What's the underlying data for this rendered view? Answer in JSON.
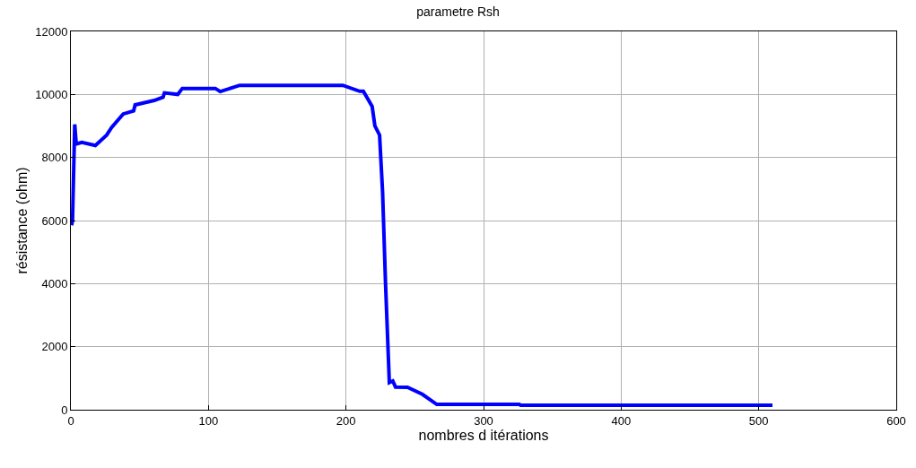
{
  "chart_data": {
    "type": "line",
    "title": "parametre Rsh",
    "xlabel": "nombres d itérations",
    "ylabel": "résistance (ohm)",
    "x": [
      0.5,
      1.2,
      2.8,
      3.9,
      8,
      17.8,
      26,
      29.6,
      38,
      45.6,
      46.7,
      60.6,
      67,
      68,
      77.7,
      81,
      105,
      108.6,
      122.7,
      152.7,
      197.7,
      210,
      212.6,
      219,
      221,
      224.4,
      226.6,
      228.7,
      231.5,
      234,
      236,
      244.7,
      255.5,
      266,
      326,
      327,
      510
    ],
    "series": [
      {
        "color": "#0000ff",
        "values": [
          5850,
          6000,
          9050,
          8430,
          8480,
          8380,
          8710,
          8950,
          9380,
          9480,
          9670,
          9810,
          9910,
          10050,
          10000,
          10190,
          10190,
          10090,
          10290,
          10290,
          10290,
          10100,
          10100,
          9620,
          9000,
          8710,
          6900,
          4050,
          860,
          910,
          720,
          710,
          490,
          170,
          170,
          140,
          140
        ]
      }
    ],
    "xlim": [
      0,
      600
    ],
    "xticks": [
      0,
      100,
      200,
      300,
      400,
      500,
      600
    ],
    "ylim": [
      0,
      12000
    ],
    "yticks": [
      0,
      2000,
      4000,
      6000,
      8000,
      10000,
      12000
    ],
    "grid": true,
    "line_style": "solid"
  }
}
